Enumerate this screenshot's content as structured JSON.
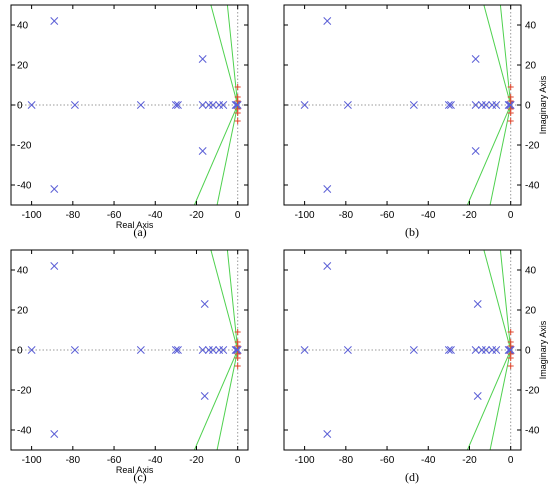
{
  "chart_data": [
    {
      "type": "scatter",
      "caption": "(a)",
      "xlabel": "Real Axis",
      "ylabel": "",
      "xlim": [
        -110,
        5
      ],
      "ylim": [
        -50,
        50
      ],
      "xticks": [
        -100,
        -80,
        -60,
        -40,
        -20,
        0
      ],
      "yticks": [
        -40,
        -20,
        0,
        20,
        40
      ],
      "ytick_side": "left",
      "poles": [
        [
          -89,
          42
        ],
        [
          -89,
          -42
        ],
        [
          -100,
          0
        ],
        [
          -79,
          0
        ],
        [
          -47,
          0
        ],
        [
          -30,
          0
        ],
        [
          -29,
          0
        ],
        [
          -17,
          0
        ],
        [
          -14,
          0
        ],
        [
          -12,
          0
        ],
        [
          -9,
          0
        ],
        [
          -7,
          0
        ],
        [
          -17,
          23
        ],
        [
          -17,
          -23
        ],
        [
          -1,
          0
        ],
        [
          0,
          0
        ],
        [
          -0.6,
          0
        ]
      ],
      "zeros": [
        [
          0,
          9
        ],
        [
          0,
          -8
        ],
        [
          0,
          4
        ],
        [
          0,
          -4
        ],
        [
          0,
          2
        ],
        [
          0,
          -2
        ]
      ],
      "locus_lines": [
        [
          [
            0,
            0
          ],
          [
            -13,
            50
          ]
        ],
        [
          [
            0,
            0
          ],
          [
            -5,
            50
          ]
        ],
        [
          [
            0,
            0
          ],
          [
            -21,
            -50
          ]
        ],
        [
          [
            0,
            0
          ],
          [
            -10,
            -50
          ]
        ]
      ],
      "colors": {
        "pole": "#5b5fd6",
        "zero": "#e0442b",
        "locus": "#4fd14f",
        "grid": "#9a9a9a"
      }
    },
    {
      "type": "scatter",
      "caption": "(b)",
      "xlabel": "",
      "ylabel": "Imaginary Axis",
      "xlim": [
        -110,
        5
      ],
      "ylim": [
        -50,
        50
      ],
      "xticks": [
        -100,
        -80,
        -60,
        -40,
        -20,
        0
      ],
      "yticks": [
        -40,
        -20,
        0,
        20,
        40
      ],
      "ytick_side": "right",
      "poles": [
        [
          -89,
          42
        ],
        [
          -89,
          -42
        ],
        [
          -100,
          0
        ],
        [
          -79,
          0
        ],
        [
          -47,
          0
        ],
        [
          -30,
          0
        ],
        [
          -29,
          0
        ],
        [
          -17,
          0
        ],
        [
          -14,
          0
        ],
        [
          -12,
          0
        ],
        [
          -9,
          0
        ],
        [
          -7,
          0
        ],
        [
          -17,
          23
        ],
        [
          -17,
          -23
        ],
        [
          -1,
          0
        ],
        [
          0,
          0
        ],
        [
          -0.6,
          0
        ]
      ],
      "zeros": [
        [
          0,
          9
        ],
        [
          0,
          -8
        ],
        [
          0,
          4
        ],
        [
          0,
          -4
        ],
        [
          0,
          2
        ],
        [
          0,
          -2
        ]
      ],
      "locus_lines": [
        [
          [
            0,
            0
          ],
          [
            -13,
            50
          ]
        ],
        [
          [
            0,
            0
          ],
          [
            -5,
            50
          ]
        ],
        [
          [
            0,
            0
          ],
          [
            -21,
            -50
          ]
        ],
        [
          [
            0,
            0
          ],
          [
            -10,
            -50
          ]
        ]
      ],
      "colors": {
        "pole": "#5b5fd6",
        "zero": "#e0442b",
        "locus": "#4fd14f",
        "grid": "#9a9a9a"
      }
    },
    {
      "type": "scatter",
      "caption": "(c)",
      "xlabel": "Real Axis",
      "ylabel": "",
      "xlim": [
        -110,
        5
      ],
      "ylim": [
        -50,
        50
      ],
      "xticks": [
        -100,
        -80,
        -60,
        -40,
        -20,
        0
      ],
      "yticks": [
        -40,
        -20,
        0,
        20,
        40
      ],
      "ytick_side": "left",
      "poles": [
        [
          -89,
          42
        ],
        [
          -89,
          -42
        ],
        [
          -100,
          0
        ],
        [
          -79,
          0
        ],
        [
          -47,
          0
        ],
        [
          -30,
          0
        ],
        [
          -29,
          0
        ],
        [
          -17,
          0
        ],
        [
          -14,
          0
        ],
        [
          -12,
          0
        ],
        [
          -9,
          0
        ],
        [
          -7,
          0
        ],
        [
          -16,
          23
        ],
        [
          -16,
          -23
        ],
        [
          -1,
          0
        ],
        [
          0,
          0
        ],
        [
          -0.6,
          0
        ]
      ],
      "zeros": [
        [
          0,
          9
        ],
        [
          0,
          -8
        ],
        [
          0,
          4
        ],
        [
          0,
          -4
        ],
        [
          0,
          2
        ],
        [
          0,
          -2
        ]
      ],
      "locus_lines": [
        [
          [
            0,
            0
          ],
          [
            -13,
            50
          ]
        ],
        [
          [
            0,
            0
          ],
          [
            -5,
            50
          ]
        ],
        [
          [
            0,
            0
          ],
          [
            -21,
            -50
          ]
        ],
        [
          [
            0,
            0
          ],
          [
            -10,
            -50
          ]
        ]
      ],
      "colors": {
        "pole": "#5b5fd6",
        "zero": "#e0442b",
        "locus": "#4fd14f",
        "grid": "#9a9a9a"
      }
    },
    {
      "type": "scatter",
      "caption": "(d)",
      "xlabel": "",
      "ylabel": "Imaginary Axis",
      "xlim": [
        -110,
        5
      ],
      "ylim": [
        -50,
        50
      ],
      "xticks": [
        -100,
        -80,
        -60,
        -40,
        -20,
        0
      ],
      "yticks": [
        -40,
        -20,
        0,
        20,
        40
      ],
      "ytick_side": "right",
      "poles": [
        [
          -89,
          42
        ],
        [
          -89,
          -42
        ],
        [
          -100,
          0
        ],
        [
          -79,
          0
        ],
        [
          -47,
          0
        ],
        [
          -30,
          0
        ],
        [
          -29,
          0
        ],
        [
          -17,
          0
        ],
        [
          -14,
          0
        ],
        [
          -12,
          0
        ],
        [
          -9,
          0
        ],
        [
          -7,
          0
        ],
        [
          -16,
          23
        ],
        [
          -16,
          -23
        ],
        [
          -1,
          0
        ],
        [
          0,
          0
        ],
        [
          -0.6,
          0
        ]
      ],
      "zeros": [
        [
          0,
          9
        ],
        [
          0,
          -8
        ],
        [
          0,
          4
        ],
        [
          0,
          -4
        ],
        [
          0,
          2
        ],
        [
          0,
          -2
        ]
      ],
      "locus_lines": [
        [
          [
            0,
            0
          ],
          [
            -13,
            50
          ]
        ],
        [
          [
            0,
            0
          ],
          [
            -5,
            50
          ]
        ],
        [
          [
            0,
            0
          ],
          [
            -21,
            -50
          ]
        ],
        [
          [
            0,
            0
          ],
          [
            -10,
            -50
          ]
        ]
      ],
      "colors": {
        "pole": "#5b5fd6",
        "zero": "#e0442b",
        "locus": "#4fd14f",
        "grid": "#9a9a9a"
      }
    }
  ]
}
